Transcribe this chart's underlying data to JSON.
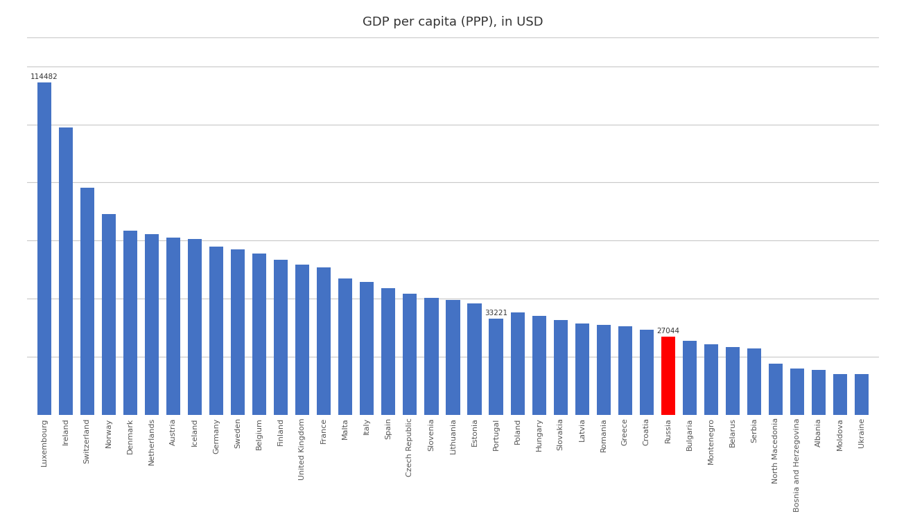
{
  "title": "GDP per capita (PPP), in USD",
  "countries": [
    "Luxembourg",
    "Ireland",
    "Switzerland",
    "Norway",
    "Denmark",
    "Netherlands",
    "Austria",
    "Iceland",
    "Germany",
    "Sweden",
    "Belgium",
    "Finland",
    "United Kingdom",
    "France",
    "Malta",
    "Italy",
    "Spain",
    "Czech Republic",
    "Slovenia",
    "Lithuania",
    "Estonia",
    "Portugal",
    "Poland",
    "Hungary",
    "Slovakia",
    "Latvia",
    "Romania",
    "Greece",
    "Croatia",
    "Russia",
    "Bulgaria",
    "Montenegro",
    "Belarus",
    "Serbia",
    "North Macedonia",
    "Bosnia and Herzegovina",
    "Albania",
    "Moldova",
    "Ukraine"
  ],
  "values": [
    114482,
    99013,
    78312,
    69249,
    63434,
    62283,
    60986,
    60638,
    57928,
    57074,
    55609,
    53490,
    51862,
    50728,
    47058,
    45762,
    43528,
    41710,
    40274,
    39534,
    38474,
    33221,
    35330,
    34052,
    32780,
    31500,
    31049,
    30495,
    29395,
    27044,
    25548,
    24217,
    23479,
    22827,
    17539,
    15892,
    15488,
    13978,
    14099
  ],
  "bar_color": "#4472C4",
  "highlight_color": "#FF0000",
  "highlight_country": "Russia",
  "annotated_countries": [
    "Luxembourg",
    "Portugal",
    "Russia"
  ],
  "annotated_values": {
    "Luxembourg": 114482,
    "Portugal": 33221,
    "Russia": 27044
  },
  "background_color": "#FFFFFF",
  "ylim_max": 130000,
  "grid_lines": [
    20000,
    40000,
    60000,
    80000,
    100000,
    120000
  ],
  "title_fontsize": 13,
  "bar_width": 0.65
}
